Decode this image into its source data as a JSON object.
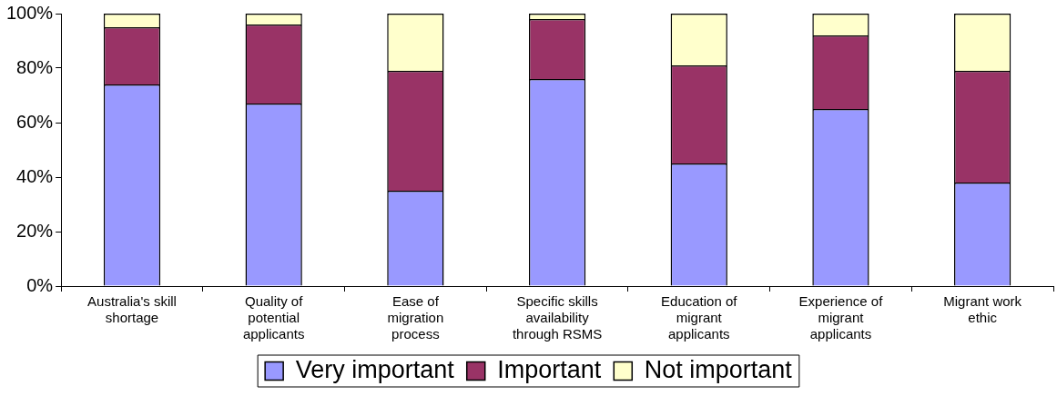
{
  "chart_data": {
    "type": "bar",
    "stacked": true,
    "categories": [
      "Australia's skill shortage",
      "Quality of potential applicants",
      "Ease of migration process",
      "Specific skills availability through RSMS",
      "Education of migrant applicants",
      "Experience of migrant applicants",
      "Migrant work ethic"
    ],
    "series": [
      {
        "name": "Very important",
        "color": "#9999ff",
        "values": [
          74,
          67,
          35,
          76,
          45,
          65,
          38
        ]
      },
      {
        "name": "Important",
        "color": "#993366",
        "values": [
          21,
          29,
          44,
          22,
          36,
          27,
          41
        ]
      },
      {
        "name": "Not important",
        "color": "#ffffcc",
        "values": [
          5,
          4,
          21,
          2,
          19,
          8,
          21
        ]
      }
    ],
    "ylim": [
      0,
      100
    ],
    "yticks": [
      {
        "value": 0,
        "label": "0%"
      },
      {
        "value": 20,
        "label": "20%"
      },
      {
        "value": 40,
        "label": "40%"
      },
      {
        "value": 60,
        "label": "60%"
      },
      {
        "value": 80,
        "label": "80%"
      },
      {
        "value": 100,
        "label": "100%"
      }
    ],
    "legend": "bottom"
  }
}
